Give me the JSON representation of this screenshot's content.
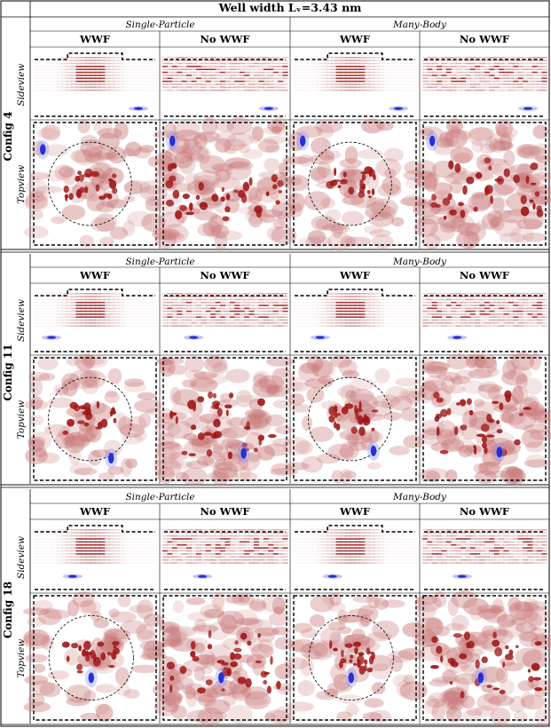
{
  "figure": {
    "title": "Well width Lᵥ=3.43 nm",
    "group_labels": [
      "Single-Particle",
      "Many-Body"
    ],
    "column_labels": [
      "WWF",
      "No WWF",
      "WWF",
      "No WWF"
    ],
    "row_labels": [
      "Sideview",
      "Topview"
    ],
    "configs": [
      {
        "label": "Config 4",
        "panels": [
          {
            "cluster": "circle",
            "hole_side": [
              0.85,
              0.88
            ],
            "hole_top": [
              0.08,
              0.22
            ]
          },
          {
            "cluster": "spread",
            "hole_side": [
              0.85,
              0.88
            ],
            "hole_top": [
              0.08,
              0.15
            ]
          },
          {
            "cluster": "circle",
            "hole_side": [
              0.85,
              0.88
            ],
            "hole_top": [
              0.08,
              0.15
            ]
          },
          {
            "cluster": "spread",
            "hole_side": [
              0.85,
              0.88
            ],
            "hole_top": [
              0.08,
              0.15
            ]
          }
        ]
      },
      {
        "label": "Config 11",
        "panels": [
          {
            "cluster": "circle",
            "hole_side": [
              0.15,
              0.78
            ],
            "hole_top": [
              0.63,
              0.82
            ]
          },
          {
            "cluster": "spread",
            "hole_side": [
              0.25,
              0.78
            ],
            "hole_top": [
              0.65,
              0.78
            ]
          },
          {
            "cluster": "circle",
            "hole_side": [
              0.22,
              0.78
            ],
            "hole_top": [
              0.65,
              0.76
            ]
          },
          {
            "cluster": "spread",
            "hole_side": [
              0.28,
              0.78
            ],
            "hole_top": [
              0.62,
              0.77
            ]
          }
        ]
      },
      {
        "label": "Config 18",
        "panels": [
          {
            "cluster": "circle",
            "hole_side": [
              0.32,
              0.8
            ],
            "hole_top": [
              0.47,
              0.66
            ]
          },
          {
            "cluster": "spread",
            "hole_side": [
              0.32,
              0.8
            ],
            "hole_top": [
              0.47,
              0.66
            ]
          },
          {
            "cluster": "circle",
            "hole_side": [
              0.32,
              0.8
            ],
            "hole_top": [
              0.47,
              0.66
            ]
          },
          {
            "cluster": "spread",
            "hole_side": [
              0.32,
              0.8
            ],
            "hole_top": [
              0.47,
              0.66
            ]
          }
        ]
      }
    ],
    "colors": {
      "electron": "#a01818",
      "electron_light": "#c9797a",
      "hole": "#1e28d8",
      "hole_light": "#8a90f0",
      "border": "#000000",
      "dash": "#000000"
    }
  }
}
